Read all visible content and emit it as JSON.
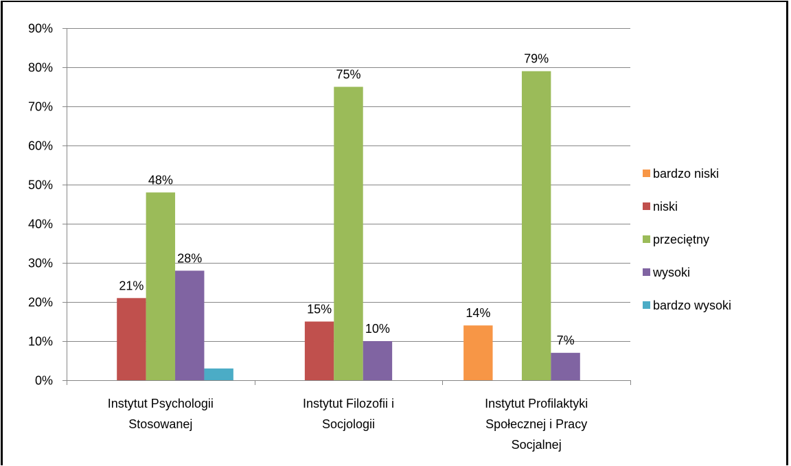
{
  "chart_data": {
    "type": "bar",
    "categories": [
      [
        "Instytut Psychologii",
        "Stosowanej"
      ],
      [
        "Instytut Filozofii i",
        "Socjologii"
      ],
      [
        "Instytut Profilaktyki",
        "Społecznej i Pracy",
        "Socjalnej"
      ]
    ],
    "series": [
      {
        "name": "bardzo niski",
        "color": "#F79646",
        "values": [
          0,
          0,
          14
        ],
        "labels": [
          "",
          "",
          "14%"
        ]
      },
      {
        "name": "niski",
        "color": "#C0504D",
        "values": [
          21,
          15,
          0
        ],
        "labels": [
          "21%",
          "15%",
          ""
        ]
      },
      {
        "name": "przeciętny",
        "color": "#9BBB59",
        "values": [
          48,
          75,
          79
        ],
        "labels": [
          "48%",
          "75%",
          "79%"
        ]
      },
      {
        "name": "wysoki",
        "color": "#8064A2",
        "values": [
          28,
          10,
          7
        ],
        "labels": [
          "28%",
          "10%",
          "7%"
        ]
      },
      {
        "name": "bardzo wysoki",
        "color": "#4BACC6",
        "values": [
          3,
          0,
          0
        ],
        "labels": [
          "",
          "",
          ""
        ]
      }
    ],
    "yticks": [
      "0%",
      "10%",
      "20%",
      "30%",
      "40%",
      "50%",
      "60%",
      "70%",
      "80%",
      "90%"
    ],
    "ylim": [
      0,
      90
    ],
    "ystep": 10,
    "grid": true,
    "legend": "right",
    "title": "",
    "xlabel": "",
    "ylabel": ""
  }
}
